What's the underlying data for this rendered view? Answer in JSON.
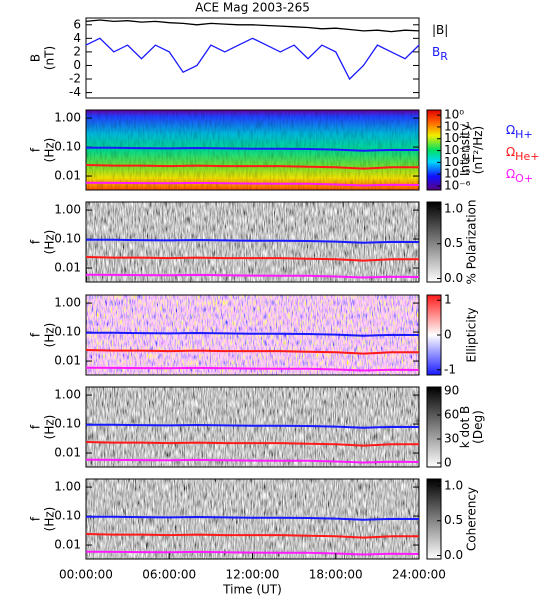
{
  "chart_data": [
    {
      "type": "line",
      "title": "ACE Mag 2003-265",
      "ylabel": [
        "B",
        "(nT)"
      ],
      "xlim": [
        0,
        24
      ],
      "ylim": [
        -4.8,
        7
      ],
      "yticks": [
        -4,
        -2,
        0,
        2,
        4,
        6
      ],
      "x": [
        0,
        1,
        2,
        3,
        4,
        5,
        6,
        7,
        8,
        9,
        10,
        11,
        12,
        13,
        14,
        15,
        16,
        17,
        18,
        19,
        20,
        21,
        22,
        23,
        24
      ],
      "series": [
        {
          "name": "|B|",
          "color": "#000000",
          "values": [
            6.5,
            6.7,
            6.5,
            6.6,
            6.4,
            6.5,
            6.3,
            6.2,
            6.0,
            6.2,
            6.1,
            6.0,
            6.0,
            5.9,
            5.8,
            5.7,
            5.6,
            5.4,
            5.5,
            5.3,
            5.1,
            5.2,
            5.0,
            5.2,
            5.1
          ]
        },
        {
          "name": "B",
          "subscript": "R",
          "color": "#1a1aff",
          "values": [
            3,
            4,
            2,
            3,
            1,
            3,
            2,
            -1,
            0,
            3,
            2,
            3,
            4,
            3,
            2,
            3,
            1,
            3,
            2,
            -2,
            0,
            3,
            2,
            1,
            3
          ]
        }
      ]
    },
    {
      "type": "spectrogram",
      "ylabel": [
        "f",
        "(Hz)"
      ],
      "log_y": true,
      "xlim": [
        0,
        24
      ],
      "ylim": [
        0.0033,
        1.9
      ],
      "yticks": [
        {
          "value": 1,
          "label": "1.00"
        },
        {
          "value": 0.1,
          "label": "0.10"
        },
        {
          "value": 0.01,
          "label": "0.01"
        }
      ],
      "colormap": "rainbow",
      "clabel": [
        "Intensity",
        "(nT²/Hz)"
      ],
      "clog": true,
      "clim": [
        4.6e-07,
        2.7
      ],
      "cticks": [
        {
          "value": 1,
          "label": "10⁰"
        },
        {
          "value": 0.1,
          "label": "10⁻¹"
        },
        {
          "value": 0.01,
          "label": "10⁻²"
        },
        {
          "value": 0.001,
          "label": "10⁻³"
        },
        {
          "value": 0.0001,
          "label": "10⁻⁴"
        },
        {
          "value": 1e-05,
          "label": "10⁻⁵"
        },
        {
          "value": 1e-06,
          "label": "10⁻⁶"
        }
      ],
      "legend": true,
      "x": [
        0,
        2,
        4,
        6,
        8,
        10,
        12,
        14,
        16,
        18,
        20,
        22,
        24
      ],
      "series": [
        {
          "name": "Ω",
          "subscript": "H+",
          "color": "#1a1aff",
          "values": [
            0.095,
            0.094,
            0.092,
            0.09,
            0.093,
            0.09,
            0.088,
            0.087,
            0.086,
            0.082,
            0.075,
            0.08,
            0.079
          ]
        },
        {
          "name": "Ω",
          "subscript": "He+",
          "color": "#ff1a1a",
          "values": [
            0.024,
            0.023,
            0.023,
            0.022,
            0.023,
            0.022,
            0.022,
            0.022,
            0.021,
            0.02,
            0.018,
            0.02,
            0.02
          ]
        },
        {
          "name": "Ω",
          "subscript": "O+",
          "color": "#ff1aff",
          "values": [
            0.0059,
            0.0058,
            0.0057,
            0.0056,
            0.0058,
            0.0056,
            0.0055,
            0.0054,
            0.0054,
            0.0051,
            0.0047,
            0.005,
            0.0049
          ]
        }
      ]
    },
    {
      "type": "spectrogram",
      "ylabel": [
        "f",
        "(Hz)"
      ],
      "log_y": true,
      "xlim": [
        0,
        24
      ],
      "ylim": [
        0.0033,
        1.9
      ],
      "yticks": [
        {
          "value": 1,
          "label": "1.00"
        },
        {
          "value": 0.1,
          "label": "0.10"
        },
        {
          "value": 0.01,
          "label": "0.01"
        }
      ],
      "colormap": "gray",
      "clabel": [
        "% Polarization"
      ],
      "clog": false,
      "clim": [
        -0.05,
        1.1
      ],
      "cticks": [
        {
          "value": 1,
          "label": "1.0"
        },
        {
          "value": 0.5,
          "label": "0.5"
        },
        {
          "value": 0,
          "label": "0.0"
        }
      ],
      "legend": false,
      "x": [
        0,
        2,
        4,
        6,
        8,
        10,
        12,
        14,
        16,
        18,
        20,
        22,
        24
      ],
      "series": [
        {
          "color": "#1a1aff",
          "values": [
            0.095,
            0.094,
            0.092,
            0.09,
            0.093,
            0.09,
            0.088,
            0.087,
            0.086,
            0.082,
            0.075,
            0.08,
            0.079
          ]
        },
        {
          "color": "#ff1a1a",
          "values": [
            0.024,
            0.023,
            0.023,
            0.022,
            0.023,
            0.022,
            0.022,
            0.022,
            0.021,
            0.02,
            0.018,
            0.02,
            0.02
          ]
        },
        {
          "color": "#ff1aff",
          "values": [
            0.0059,
            0.0058,
            0.0057,
            0.0056,
            0.0058,
            0.0056,
            0.0055,
            0.0054,
            0.0054,
            0.0051,
            0.0047,
            0.005,
            0.0049
          ]
        }
      ]
    },
    {
      "type": "spectrogram",
      "ylabel": [
        "f",
        "(Hz)"
      ],
      "log_y": true,
      "xlim": [
        0,
        24
      ],
      "ylim": [
        0.0033,
        1.9
      ],
      "yticks": [
        {
          "value": 1,
          "label": "1.00"
        },
        {
          "value": 0.1,
          "label": "0.10"
        },
        {
          "value": 0.01,
          "label": "0.01"
        }
      ],
      "colormap": "bwr",
      "clabel": [
        "Ellipticity"
      ],
      "clog": false,
      "clim": [
        -1.15,
        1.15
      ],
      "cticks": [
        1,
        0,
        -1
      ],
      "legend": false,
      "x": [
        0,
        2,
        4,
        6,
        8,
        10,
        12,
        14,
        16,
        18,
        20,
        22,
        24
      ],
      "series": [
        {
          "color": "#1a1aff",
          "values": [
            0.095,
            0.094,
            0.092,
            0.09,
            0.093,
            0.09,
            0.088,
            0.087,
            0.086,
            0.082,
            0.075,
            0.08,
            0.079
          ]
        },
        {
          "color": "#ff1a1a",
          "values": [
            0.024,
            0.023,
            0.023,
            0.022,
            0.023,
            0.022,
            0.022,
            0.022,
            0.021,
            0.02,
            0.018,
            0.02,
            0.02
          ]
        },
        {
          "color": "#ff1aff",
          "values": [
            0.0059,
            0.0058,
            0.0057,
            0.0056,
            0.0058,
            0.0056,
            0.0055,
            0.0054,
            0.0054,
            0.0051,
            0.0047,
            0.005,
            0.0049
          ]
        }
      ]
    },
    {
      "type": "spectrogram",
      "ylabel": [
        "f",
        "(Hz)"
      ],
      "log_y": true,
      "xlim": [
        0,
        24
      ],
      "ylim": [
        0.0033,
        1.9
      ],
      "yticks": [
        {
          "value": 1,
          "label": "1.00"
        },
        {
          "value": 0.1,
          "label": "0.10"
        },
        {
          "value": 0.01,
          "label": "0.01"
        }
      ],
      "colormap": "gray",
      "clabel": [
        "k dot B",
        "(Deg)"
      ],
      "clog": false,
      "clim": [
        -5,
        95
      ],
      "cticks": [
        90,
        60,
        30,
        0
      ],
      "legend": false,
      "x": [
        0,
        2,
        4,
        6,
        8,
        10,
        12,
        14,
        16,
        18,
        20,
        22,
        24
      ],
      "series": [
        {
          "color": "#1a1aff",
          "values": [
            0.095,
            0.094,
            0.092,
            0.09,
            0.093,
            0.09,
            0.088,
            0.087,
            0.086,
            0.082,
            0.075,
            0.08,
            0.079
          ]
        },
        {
          "color": "#ff1a1a",
          "values": [
            0.024,
            0.023,
            0.023,
            0.022,
            0.023,
            0.022,
            0.022,
            0.022,
            0.021,
            0.02,
            0.018,
            0.02,
            0.02
          ]
        },
        {
          "color": "#ff1aff",
          "values": [
            0.0059,
            0.0058,
            0.0057,
            0.0056,
            0.0058,
            0.0056,
            0.0055,
            0.0054,
            0.0054,
            0.0051,
            0.0047,
            0.005,
            0.0049
          ]
        }
      ]
    },
    {
      "type": "spectrogram",
      "ylabel": [
        "f",
        "(Hz)"
      ],
      "log_y": true,
      "xlim": [
        0,
        24
      ],
      "ylim": [
        0.0033,
        1.9
      ],
      "yticks": [
        {
          "value": 1,
          "label": "1.00"
        },
        {
          "value": 0.1,
          "label": "0.10"
        },
        {
          "value": 0.01,
          "label": "0.01"
        }
      ],
      "colormap": "gray",
      "clabel": [
        "Coherency"
      ],
      "clog": false,
      "clim": [
        -0.05,
        1.1
      ],
      "cticks": [
        {
          "value": 1,
          "label": "1.0"
        },
        {
          "value": 0.5,
          "label": "0.5"
        },
        {
          "value": 0,
          "label": "0.0"
        }
      ],
      "legend": false,
      "x": [
        0,
        2,
        4,
        6,
        8,
        10,
        12,
        14,
        16,
        18,
        20,
        22,
        24
      ],
      "xlabel": "Time (UT)",
      "xticks": [
        {
          "value": 0,
          "label": "00:00:00"
        },
        {
          "value": 6,
          "label": "06:00:00"
        },
        {
          "value": 12,
          "label": "12:00:00"
        },
        {
          "value": 18,
          "label": "18:00:00"
        },
        {
          "value": 24,
          "label": "24:00:00"
        }
      ],
      "series": [
        {
          "color": "#1a1aff",
          "values": [
            0.095,
            0.094,
            0.092,
            0.09,
            0.093,
            0.09,
            0.088,
            0.087,
            0.086,
            0.082,
            0.075,
            0.08,
            0.079
          ]
        },
        {
          "color": "#ff1a1a",
          "values": [
            0.024,
            0.023,
            0.023,
            0.022,
            0.023,
            0.022,
            0.022,
            0.022,
            0.021,
            0.02,
            0.018,
            0.02,
            0.02
          ]
        },
        {
          "color": "#ff1aff",
          "values": [
            0.0059,
            0.0058,
            0.0057,
            0.0056,
            0.0058,
            0.0056,
            0.0055,
            0.0054,
            0.0054,
            0.0051,
            0.0047,
            0.005,
            0.0049
          ]
        }
      ]
    }
  ]
}
